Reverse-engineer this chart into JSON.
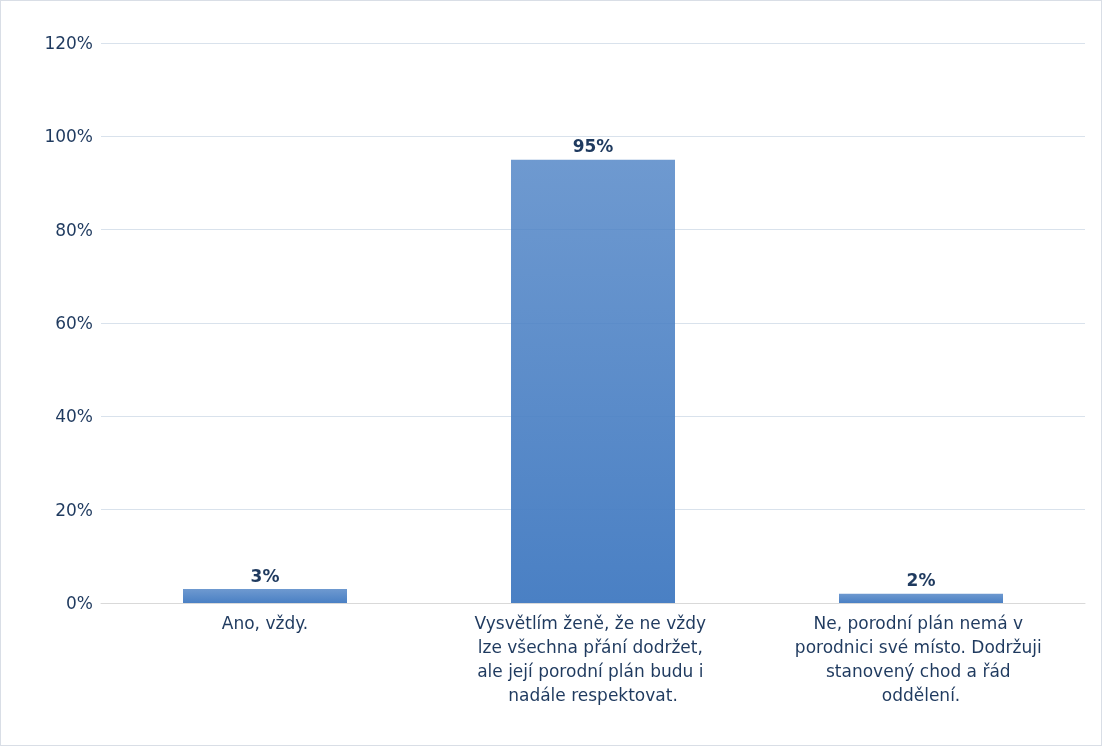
{
  "chart_data": {
    "type": "bar",
    "categories": [
      "Ano, vždy.",
      "Vysvětlím ženě, že ne vždy lze všechna přání dodržet, ale její porodní plán budu i nadále respektovat.",
      "Ne, porodní plán nemá v porodnici své místo. Dodržuji stanovený chod a řád oddělení."
    ],
    "values": [
      3,
      95,
      2
    ],
    "value_labels": [
      "3%",
      "95%",
      "2%"
    ],
    "color": "#4a80c4",
    "ylim": [
      0,
      120
    ],
    "yticks": [
      {
        "value": 0,
        "label": "0%"
      },
      {
        "value": 20,
        "label": "20%"
      },
      {
        "value": 40,
        "label": "40%"
      },
      {
        "value": 60,
        "label": "60%"
      },
      {
        "value": 80,
        "label": "80%"
      },
      {
        "value": 100,
        "label": "100%"
      },
      {
        "value": 120,
        "label": "120%"
      }
    ],
    "grid": "y"
  }
}
